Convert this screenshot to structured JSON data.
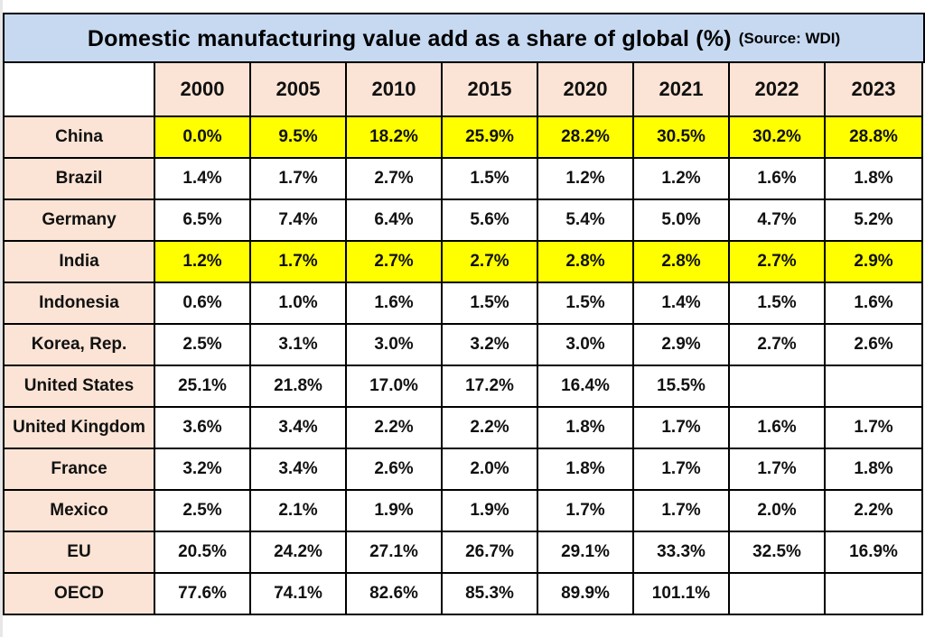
{
  "colors": {
    "title_bg": "#c6d9f1",
    "header_bg": "#fbe4d5",
    "label_bg": "#fbe4d5",
    "highlight_bg": "#ffff00",
    "cell_bg": "#ffffff",
    "border": "#000000"
  },
  "title": {
    "main": "Domestic manufacturing value add as a share of global  (%)",
    "source": "(Source: WDI)"
  },
  "chart_data": {
    "type": "table",
    "title": "Domestic manufacturing value add as a share of global  (%)",
    "subtitle": "(Source: WDI)",
    "columns": [
      "2000",
      "2005",
      "2010",
      "2015",
      "2020",
      "2021",
      "2022",
      "2023"
    ],
    "rows": [
      {
        "label": "China",
        "highlight": true,
        "values": [
          "0.0%",
          "9.5%",
          "18.2%",
          "25.9%",
          "28.2%",
          "30.5%",
          "30.2%",
          "28.8%"
        ]
      },
      {
        "label": "Brazil",
        "highlight": false,
        "values": [
          "1.4%",
          "1.7%",
          "2.7%",
          "1.5%",
          "1.2%",
          "1.2%",
          "1.6%",
          "1.8%"
        ]
      },
      {
        "label": "Germany",
        "highlight": false,
        "values": [
          "6.5%",
          "7.4%",
          "6.4%",
          "5.6%",
          "5.4%",
          "5.0%",
          "4.7%",
          "5.2%"
        ]
      },
      {
        "label": "India",
        "highlight": true,
        "values": [
          "1.2%",
          "1.7%",
          "2.7%",
          "2.7%",
          "2.8%",
          "2.8%",
          "2.7%",
          "2.9%"
        ]
      },
      {
        "label": "Indonesia",
        "highlight": false,
        "values": [
          "0.6%",
          "1.0%",
          "1.6%",
          "1.5%",
          "1.5%",
          "1.4%",
          "1.5%",
          "1.6%"
        ]
      },
      {
        "label": "Korea, Rep.",
        "highlight": false,
        "values": [
          "2.5%",
          "3.1%",
          "3.0%",
          "3.2%",
          "3.0%",
          "2.9%",
          "2.7%",
          "2.6%"
        ]
      },
      {
        "label": "United States",
        "highlight": false,
        "values": [
          "25.1%",
          "21.8%",
          "17.0%",
          "17.2%",
          "16.4%",
          "15.5%",
          "",
          ""
        ]
      },
      {
        "label": "United Kingdom",
        "highlight": false,
        "values": [
          "3.6%",
          "3.4%",
          "2.2%",
          "2.2%",
          "1.8%",
          "1.7%",
          "1.6%",
          "1.7%"
        ]
      },
      {
        "label": "France",
        "highlight": false,
        "values": [
          "3.2%",
          "3.4%",
          "2.6%",
          "2.0%",
          "1.8%",
          "1.7%",
          "1.7%",
          "1.8%"
        ]
      },
      {
        "label": "Mexico",
        "highlight": false,
        "values": [
          "2.5%",
          "2.1%",
          "1.9%",
          "1.9%",
          "1.7%",
          "1.7%",
          "2.0%",
          "2.2%"
        ]
      },
      {
        "label": "EU",
        "highlight": false,
        "values": [
          "20.5%",
          "24.2%",
          "27.1%",
          "26.7%",
          "29.1%",
          "33.3%",
          "32.5%",
          "16.9%"
        ]
      },
      {
        "label": "OECD",
        "highlight": false,
        "values": [
          "77.6%",
          "74.1%",
          "82.6%",
          "85.3%",
          "89.9%",
          "101.1%",
          "",
          ""
        ]
      }
    ]
  }
}
